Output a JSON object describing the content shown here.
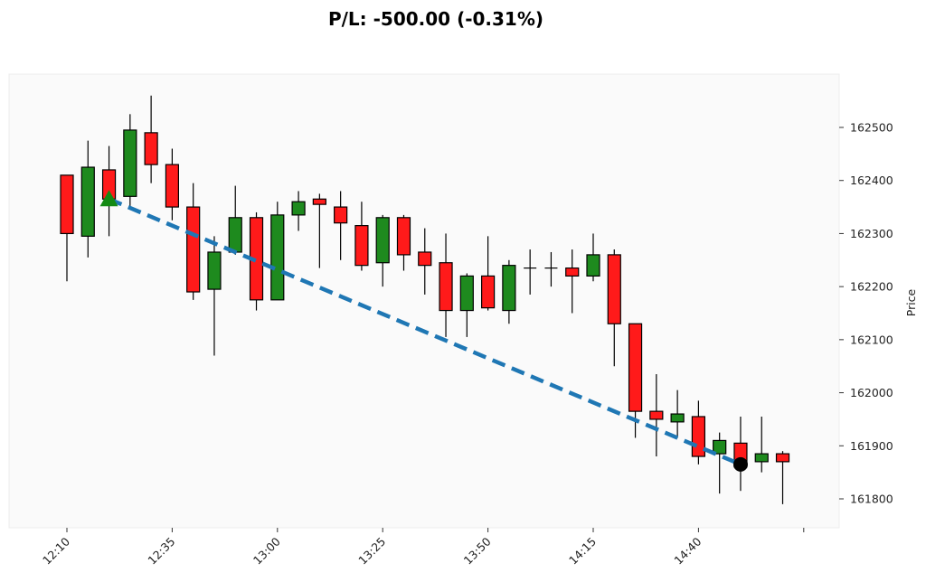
{
  "chart_data": {
    "type": "candlestick",
    "title": "P/L: -500.00 (-0.31%)",
    "xlabel": "",
    "ylabel": "Price",
    "ylim": [
      161740,
      162605
    ],
    "yticks": [
      161800,
      161900,
      162000,
      162100,
      162200,
      162300,
      162400,
      162500
    ],
    "xtick_labels": [
      "12:10",
      "12:35",
      "13:00",
      "13:25",
      "13:50",
      "14:15",
      "14:40",
      ""
    ],
    "interval_minutes": 5,
    "colors": {
      "up": "#1e8a1e",
      "down": "#ff1a1a",
      "trend": "#1f77b4",
      "entry": "#138a13",
      "exit": "#000000",
      "background": "#fafafa"
    },
    "candles": [
      {
        "t": "12:10",
        "o": 162410,
        "h": 162410,
        "l": 162210,
        "c": 162300
      },
      {
        "t": "12:15",
        "o": 162295,
        "h": 162475,
        "l": 162255,
        "c": 162425
      },
      {
        "t": "12:20",
        "o": 162420,
        "h": 162465,
        "l": 162295,
        "c": 162365
      },
      {
        "t": "12:25",
        "o": 162370,
        "h": 162525,
        "l": 162345,
        "c": 162495
      },
      {
        "t": "12:30",
        "o": 162490,
        "h": 162560,
        "l": 162395,
        "c": 162430
      },
      {
        "t": "12:35",
        "o": 162430,
        "h": 162460,
        "l": 162325,
        "c": 162350
      },
      {
        "t": "12:40",
        "o": 162350,
        "h": 162395,
        "l": 162175,
        "c": 162190
      },
      {
        "t": "12:45",
        "o": 162195,
        "h": 162295,
        "l": 162070,
        "c": 162265
      },
      {
        "t": "12:50",
        "o": 162265,
        "h": 162390,
        "l": 162260,
        "c": 162330
      },
      {
        "t": "12:55",
        "o": 162330,
        "h": 162340,
        "l": 162155,
        "c": 162175
      },
      {
        "t": "13:00",
        "o": 162175,
        "h": 162360,
        "l": 162175,
        "c": 162335
      },
      {
        "t": "13:05",
        "o": 162335,
        "h": 162380,
        "l": 162305,
        "c": 162360
      },
      {
        "t": "13:10",
        "o": 162365,
        "h": 162375,
        "l": 162235,
        "c": 162355
      },
      {
        "t": "13:15",
        "o": 162350,
        "h": 162380,
        "l": 162250,
        "c": 162320
      },
      {
        "t": "13:20",
        "o": 162315,
        "h": 162360,
        "l": 162230,
        "c": 162240
      },
      {
        "t": "13:25",
        "o": 162245,
        "h": 162335,
        "l": 162200,
        "c": 162330
      },
      {
        "t": "13:30",
        "o": 162330,
        "h": 162335,
        "l": 162230,
        "c": 162260
      },
      {
        "t": "13:35",
        "o": 162265,
        "h": 162310,
        "l": 162185,
        "c": 162240
      },
      {
        "t": "13:40",
        "o": 162245,
        "h": 162300,
        "l": 162105,
        "c": 162155
      },
      {
        "t": "13:45",
        "o": 162155,
        "h": 162225,
        "l": 162105,
        "c": 162220
      },
      {
        "t": "13:50",
        "o": 162220,
        "h": 162295,
        "l": 162155,
        "c": 162160
      },
      {
        "t": "13:55",
        "o": 162155,
        "h": 162250,
        "l": 162130,
        "c": 162240
      },
      {
        "t": "14:00",
        "o": 162235,
        "h": 162270,
        "l": 162185,
        "c": 162235
      },
      {
        "t": "14:05",
        "o": 162235,
        "h": 162265,
        "l": 162200,
        "c": 162235
      },
      {
        "t": "14:10",
        "o": 162235,
        "h": 162270,
        "l": 162150,
        "c": 162220
      },
      {
        "t": "14:15",
        "o": 162220,
        "h": 162300,
        "l": 162210,
        "c": 162260
      },
      {
        "t": "14:20",
        "o": 162260,
        "h": 162270,
        "l": 162050,
        "c": 162130
      },
      {
        "t": "14:25",
        "o": 162130,
        "h": 162130,
        "l": 161915,
        "c": 161965
      },
      {
        "t": "14:30",
        "o": 161965,
        "h": 162035,
        "l": 161880,
        "c": 161950
      },
      {
        "t": "14:35",
        "o": 161945,
        "h": 162005,
        "l": 161915,
        "c": 161960
      },
      {
        "t": "14:40",
        "o": 161955,
        "h": 161985,
        "l": 161865,
        "c": 161880
      },
      {
        "t": "14:45",
        "o": 161885,
        "h": 161925,
        "l": 161810,
        "c": 161910
      },
      {
        "t": "14:50",
        "o": 161905,
        "h": 161955,
        "l": 161815,
        "c": 161860
      },
      {
        "t": "14:55",
        "o": 161870,
        "h": 161955,
        "l": 161850,
        "c": 161885
      },
      {
        "t": "15:00",
        "o": 161885,
        "h": 161890,
        "l": 161790,
        "c": 161870
      }
    ],
    "entry": {
      "index": 2,
      "price": 162365,
      "marker": "triangle-up"
    },
    "exit": {
      "index": 32,
      "price": 161865,
      "marker": "circle"
    }
  }
}
